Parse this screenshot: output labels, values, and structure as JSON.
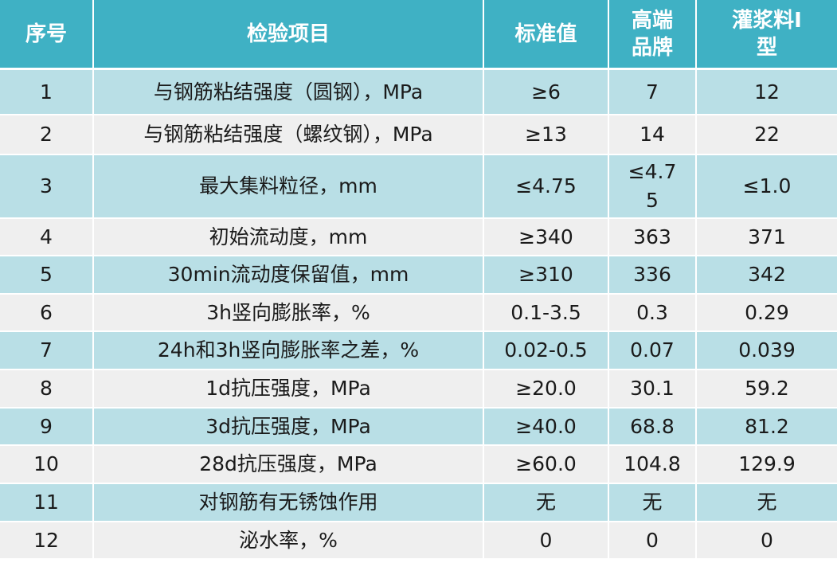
{
  "header": {
    "col_no": "序号",
    "col_item": "检验项目",
    "col_standard": "标准值",
    "col_highend": "高端品牌",
    "col_grout": "灌浆料Ⅰ型"
  },
  "rows": [
    {
      "no": "1",
      "item": "与钢筋粘结强度（圆钢），MPa",
      "standard": "≥6",
      "highend": "7",
      "grout": "12"
    },
    {
      "no": "2",
      "item": "与钢筋粘结强度（螺纹钢），MPa",
      "standard": "≥13",
      "highend": "14",
      "grout": "22"
    },
    {
      "no": "3",
      "item": "最大集料粒径，mm",
      "standard": "≤4.75",
      "highend": "≤4.75",
      "grout": "≤1.0"
    },
    {
      "no": "4",
      "item": "初始流动度，mm",
      "standard": "≥340",
      "highend": "363",
      "grout": "371"
    },
    {
      "no": "5",
      "item": "30min流动度保留值，mm",
      "standard": "≥310",
      "highend": "336",
      "grout": "342"
    },
    {
      "no": "6",
      "item": "3h竖向膨胀率，%",
      "standard": "0.1-3.5",
      "highend": "0.3",
      "grout": "0.29"
    },
    {
      "no": "7",
      "item": "24h和3h竖向膨胀率之差，%",
      "standard": "0.02-0.5",
      "highend": "0.07",
      "grout": "0.039"
    },
    {
      "no": "8",
      "item": "1d抗压强度，MPa",
      "standard": "≥20.0",
      "highend": "30.1",
      "grout": "59.2"
    },
    {
      "no": "9",
      "item": "3d抗压强度，MPa",
      "standard": "≥40.0",
      "highend": "68.8",
      "grout": "81.2"
    },
    {
      "no": "10",
      "item": "28d抗压强度，MPa",
      "standard": "≥60.0",
      "highend": "104.8",
      "grout": "129.9"
    },
    {
      "no": "11",
      "item": "对钢筋有无锈蚀作用",
      "standard": "无",
      "highend": "无",
      "grout": "无"
    },
    {
      "no": "12",
      "item": "泌水率，%",
      "standard": "0",
      "highend": "0",
      "grout": "0"
    }
  ],
  "colors": {
    "header_bg": "#3fb1c4",
    "row_odd_bg": "#b9dfe6",
    "row_even_bg": "#efefef",
    "text": "#1a1a1a"
  }
}
